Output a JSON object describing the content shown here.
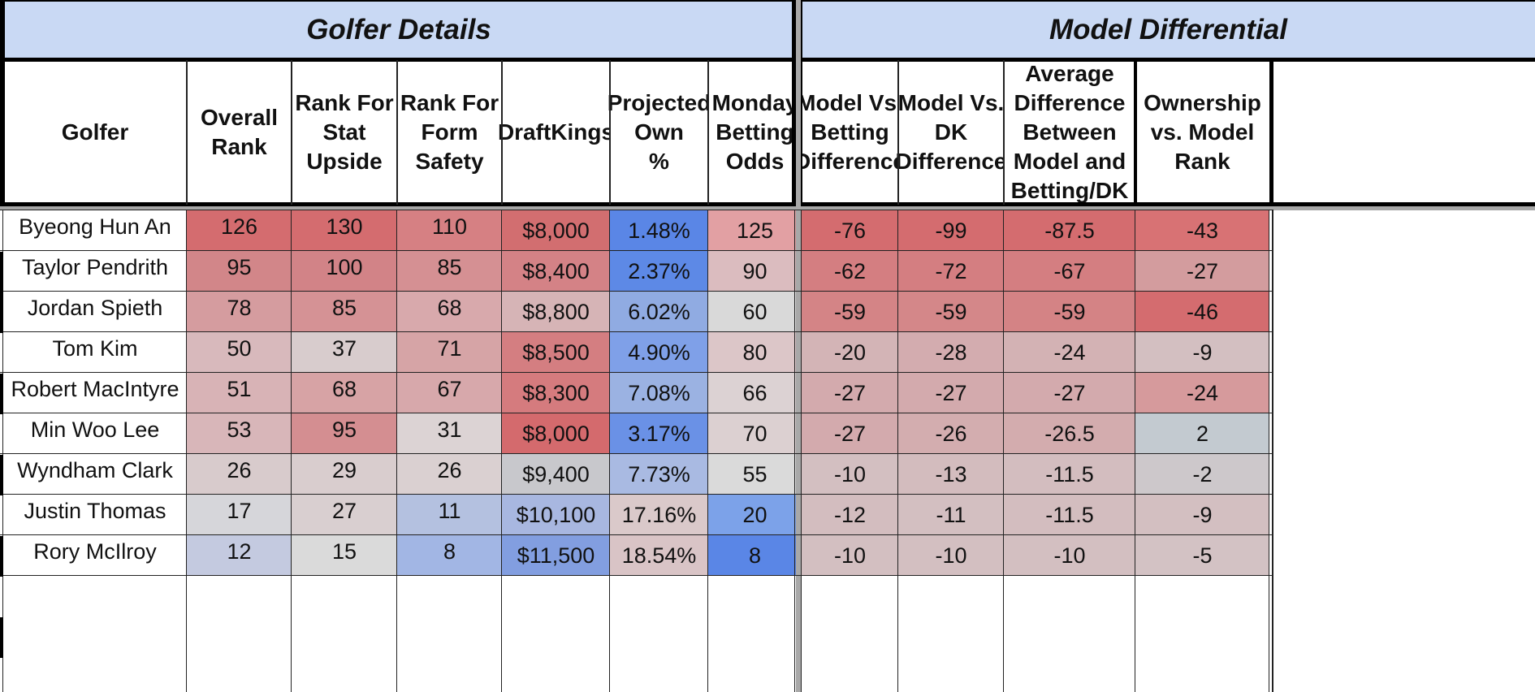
{
  "sections": {
    "golfer_details": "Golfer Details",
    "model_differential": "Model Differential"
  },
  "headers": [
    "Golfer",
    "Overall\nRank",
    "Rank For\nStat\nUpside",
    "Rank For\nForm\nSafety",
    "DraftKings",
    "Projected\nOwn\n%",
    "Monday\nBetting\nOdds",
    "Model Vs.\nBetting\nDifference",
    "Model Vs.\nDK\nDifference",
    "Average\nDifference\nBetween\nModel and\nBetting/DK",
    "Ownership\nvs. Model\nRank"
  ],
  "rows": [
    {
      "values": [
        "Byeong Hun An",
        "126",
        "130",
        "110",
        "$8,000",
        "1.48%",
        "125",
        "-76",
        "-99",
        "-87.5",
        "-43"
      ],
      "colors": [
        "#ffffff",
        "#d46c6f",
        "#d46c6f",
        "#d68083",
        "#d26e70",
        "#5a86e6",
        "#e2a0a3",
        "#d46c6f",
        "#d46c6f",
        "#d46c6f",
        "#d87274"
      ]
    },
    {
      "values": [
        "Taylor Pendrith",
        "95",
        "100",
        "85",
        "$8,400",
        "2.37%",
        "90",
        "-62",
        "-72",
        "-67",
        "-27"
      ],
      "colors": [
        "#ffffff",
        "#d28689",
        "#d28387",
        "#d59093",
        "#d48286",
        "#5d89e6",
        "#dbbcbf",
        "#d47e81",
        "#d47e81",
        "#d47e81",
        "#d39c9e"
      ]
    },
    {
      "values": [
        "Jordan Spieth",
        "78",
        "85",
        "68",
        "$8,800",
        "6.02%",
        "60",
        "-59",
        "-59",
        "-59",
        "-46"
      ],
      "colors": [
        "#ffffff",
        "#d59c9f",
        "#d59295",
        "#d8a9ac",
        "#d6b4b6",
        "#90abe2",
        "#d9d9d9",
        "#d48486",
        "#d48789",
        "#d48385",
        "#d46c6f"
      ]
    },
    {
      "values": [
        "Tom Kim",
        "50",
        "37",
        "71",
        "$8,500",
        "4.90%",
        "80",
        "-20",
        "-28",
        "-24",
        "-9"
      ],
      "colors": [
        "#ffffff",
        "#d8b9bc",
        "#d8cccd",
        "#d6a4a6",
        "#d47e81",
        "#7fa0e8",
        "#dcc6c8",
        "#d3b4b6",
        "#d3acaf",
        "#d3b2b4",
        "#d3bfc1"
      ]
    },
    {
      "values": [
        "Robert MacIntyre",
        "51",
        "68",
        "67",
        "$8,300",
        "7.08%",
        "66",
        "-27",
        "-27",
        "-27",
        "-24"
      ],
      "colors": [
        "#ffffff",
        "#d8b3b6",
        "#d7a3a5",
        "#d7a8ab",
        "#d57b7e",
        "#9bb2e2",
        "#dcd2d3",
        "#d3aaad",
        "#d3aaad",
        "#d3aaad",
        "#d69a9c"
      ]
    },
    {
      "values": [
        "Min Woo Lee",
        "53",
        "95",
        "31",
        "$8,000",
        "3.17%",
        "70",
        "-27",
        "-26",
        "-26.5",
        "2"
      ],
      "colors": [
        "#ffffff",
        "#d8b6b9",
        "#d48e91",
        "#dcd3d4",
        "#d46a6d",
        "#6a91e6",
        "#dcd0d1",
        "#d3aaad",
        "#d3adaf",
        "#d3acae",
        "#c3cad0"
      ]
    },
    {
      "values": [
        "Wyndham Clark",
        "26",
        "29",
        "26",
        "$9,400",
        "7.73%",
        "55",
        "-10",
        "-13",
        "-11.5",
        "-2"
      ],
      "colors": [
        "#ffffff",
        "#d8cbcc",
        "#d9cdce",
        "#dad0d1",
        "#c8c8cc",
        "#a9bae2",
        "#dadada",
        "#d3bfc1",
        "#d3bcbe",
        "#d3bdbf",
        "#cdc8cb"
      ]
    },
    {
      "values": [
        "Justin Thomas",
        "17",
        "27",
        "11",
        "$10,100",
        "17.16%",
        "20",
        "-12",
        "-11",
        "-11.5",
        "-9"
      ],
      "colors": [
        "#ffffff",
        "#d6d6da",
        "#d9cfd0",
        "#b4c1e0",
        "#a8b7e0",
        "#dac9ca",
        "#7ca2e9",
        "#d3bdbf",
        "#d3bfc1",
        "#d3bdbf",
        "#d3bfc1"
      ]
    },
    {
      "values": [
        "Rory McIlroy",
        "12",
        "15",
        "8",
        "$11,500",
        "18.54%",
        "8",
        "-10",
        "-10",
        "-10",
        "-5"
      ],
      "colors": [
        "#ffffff",
        "#c4cae0",
        "#dadada",
        "#a2b6e4",
        "#829ee0",
        "#d9c4c6",
        "#5a86e6",
        "#d3bfc1",
        "#d3bfc1",
        "#d3bfc1",
        "#d3c2c4"
      ]
    }
  ]
}
